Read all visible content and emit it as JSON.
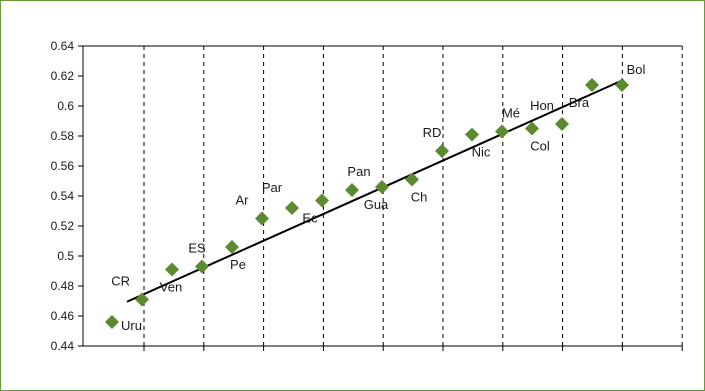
{
  "chart_data": {
    "type": "scatter",
    "title": "",
    "xlabel": "",
    "ylabel": "",
    "ylim": [
      0.44,
      0.64
    ],
    "y_ticks": [
      "0.44",
      "0.46",
      "0.48",
      "0.5",
      "0.52",
      "0.54",
      "0.56",
      "0.58",
      "0.6",
      "0.62",
      "0.64"
    ],
    "grid": "vertical dashed",
    "legend": "none",
    "marker_color": "#5b8a2f",
    "trendline_color": "#000000",
    "trendline": {
      "start": [
        1.5,
        0.4695
      ],
      "end": [
        18,
        0.617
      ]
    },
    "points": [
      {
        "label": "Uru",
        "x": 1,
        "y": 0.456
      },
      {
        "label": "CR",
        "x": 2,
        "y": 0.471
      },
      {
        "label": "Ven",
        "x": 3,
        "y": 0.491
      },
      {
        "label": "ES",
        "x": 4,
        "y": 0.493
      },
      {
        "label": "Pe",
        "x": 5,
        "y": 0.506
      },
      {
        "label": "Ar",
        "x": 6,
        "y": 0.525
      },
      {
        "label": "Par",
        "x": 7,
        "y": 0.532
      },
      {
        "label": "Ec",
        "x": 8,
        "y": 0.537
      },
      {
        "label": "Pan",
        "x": 9,
        "y": 0.544
      },
      {
        "label": "Gua",
        "x": 10,
        "y": 0.546
      },
      {
        "label": "Ch",
        "x": 11,
        "y": 0.551
      },
      {
        "label": "RD",
        "x": 12,
        "y": 0.57
      },
      {
        "label": "Nic",
        "x": 13,
        "y": 0.581
      },
      {
        "label": "Mé",
        "x": 14,
        "y": 0.583
      },
      {
        "label": "Col",
        "x": 15,
        "y": 0.585
      },
      {
        "label": "Hon",
        "x": 16,
        "y": 0.588
      },
      {
        "label": "Bra",
        "x": 17,
        "y": 0.614
      },
      {
        "label": "Bol",
        "x": 18,
        "y": 0.614
      }
    ]
  }
}
